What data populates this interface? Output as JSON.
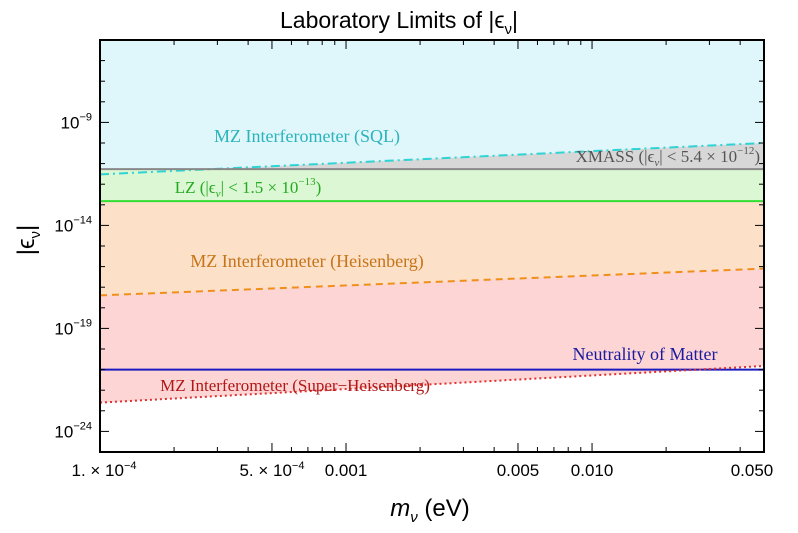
{
  "chart_data": {
    "type": "area",
    "title": "Laboratory Limits of |ϵ",
    "title_sub": "ν",
    "title_end": "|",
    "xlabel": "m",
    "xlabel_sub": "ν",
    "xlabel_end": " (eV)",
    "ylabel": "|ϵ",
    "ylabel_sub": "ν",
    "ylabel_end": "|",
    "x_scale": "log",
    "y_scale": "log",
    "xlim": [
      0.0001,
      0.05
    ],
    "ylim": [
      1e-25,
      1e-05
    ],
    "x_ticks": [
      {
        "value": 0.0001,
        "label": "1. × 10",
        "exp": "−4"
      },
      {
        "value": 0.0005,
        "label": "5. × 10",
        "exp": "−4"
      },
      {
        "value": 0.001,
        "label": "0.001",
        "exp": ""
      },
      {
        "value": 0.005,
        "label": "0.005",
        "exp": ""
      },
      {
        "value": 0.01,
        "label": "0.010",
        "exp": ""
      },
      {
        "value": 0.05,
        "label": "0.050",
        "exp": ""
      }
    ],
    "y_ticks": [
      {
        "value": 1e-09,
        "base": "10",
        "exp": "−9"
      },
      {
        "value": 1e-14,
        "base": "10",
        "exp": "−14"
      },
      {
        "value": 1e-19,
        "base": "10",
        "exp": "−19"
      },
      {
        "value": 1e-24,
        "base": "10",
        "exp": "−24"
      }
    ],
    "series": [
      {
        "name": "MZ Interferometer (SQL)",
        "style": "dashdot",
        "color": "#2ed3d3",
        "fill": "#dff6fb",
        "x": [
          0.0001,
          0.05
        ],
        "y": [
          3e-12,
          1e-10
        ]
      },
      {
        "name": "XMASS (|ϵν| < 5.4 × 10−12)",
        "style": "solid",
        "color": "#888888",
        "fill": "#d7d7d7",
        "x": [
          0.0001,
          0.05
        ],
        "y": [
          5.4e-12,
          5.4e-12
        ]
      },
      {
        "name": "LZ (|ϵν| < 1.5 × 10−13)",
        "style": "solid",
        "color": "#33dd33",
        "fill": "#dcf7d3",
        "x": [
          0.0001,
          0.05
        ],
        "y": [
          1.5e-13,
          1.5e-13
        ]
      },
      {
        "name": "MZ Interferometer (Heisenberg)",
        "style": "dashed",
        "color": "#f0901a",
        "fill": "#fde0c8",
        "x": [
          0.0001,
          0.05
        ],
        "y": [
          4e-18,
          8e-17
        ]
      },
      {
        "name": "Neutrality of Matter",
        "style": "solid",
        "color": "#1a1abf",
        "fill": "none",
        "x": [
          0.0001,
          0.05
        ],
        "y": [
          1e-21,
          1e-21
        ]
      },
      {
        "name": "MZ Interferometer (Super−Heisenberg)",
        "style": "dotted",
        "color": "#e03030",
        "fill": "#fdd5d5",
        "x": [
          0.0001,
          0.05
        ],
        "y": [
          2.5e-23,
          1.5e-21
        ]
      }
    ],
    "annotations": [
      {
        "series": 0,
        "main": "MZ Interferometer (SQL)",
        "color": "#2bb4bb"
      },
      {
        "series": 1,
        "main": "XMASS (|ϵ",
        "sub": "ν",
        "mid": "| < 5.4 × 10",
        "exp": "−12",
        "end": ")",
        "color": "#555555"
      },
      {
        "series": 2,
        "main": "LZ (|ϵ",
        "sub": "ν",
        "mid": "| < 1.5 × 10",
        "exp": "−13",
        "end": ")",
        "color": "#22aa22"
      },
      {
        "series": 3,
        "main": "MZ Interferometer (Heisenberg)",
        "color": "#c57418"
      },
      {
        "series": 4,
        "main": "Neutrality of Matter",
        "color": "#1a1a9f"
      },
      {
        "series": 5,
        "main": "MZ Interferometer (Super−Heisenberg)",
        "color": "#b01818"
      }
    ],
    "grid": false,
    "legend": "none"
  }
}
